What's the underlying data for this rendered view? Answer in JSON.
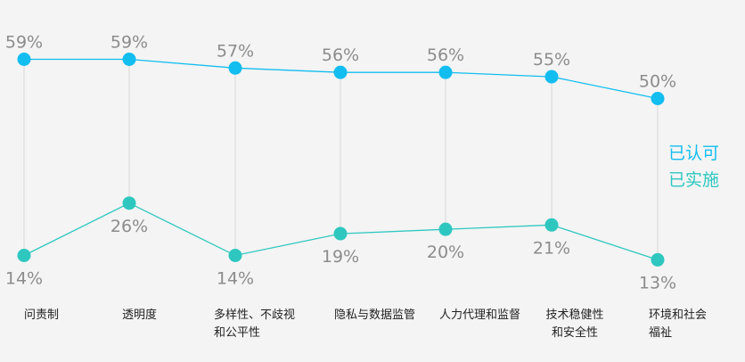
{
  "chart_data": {
    "type": "line",
    "categories": [
      [
        "问责制"
      ],
      [
        "透明度"
      ],
      [
        "多样性、不歧视",
        "和公平性"
      ],
      [
        "隐私与数据监管"
      ],
      [
        "人力代理和监督"
      ],
      [
        "技术稳健性",
        "和安全性"
      ],
      [
        "环境和社会",
        "福祉"
      ]
    ],
    "series": [
      {
        "name": "已认可",
        "color": "#12bdf0",
        "values": [
          59,
          59,
          57,
          56,
          56,
          55,
          50
        ],
        "labels": [
          "59%",
          "59%",
          "57%",
          "56%",
          "56%",
          "55%",
          "50%"
        ]
      },
      {
        "name": "已实施",
        "color": "#2ec7c0",
        "values": [
          14,
          26,
          14,
          19,
          20,
          21,
          13
        ],
        "labels": [
          "14%",
          "26%",
          "14%",
          "19%",
          "20%",
          "21%",
          "13%"
        ]
      }
    ],
    "ylim": [
      0,
      70
    ],
    "grid": false,
    "legend_position": "right"
  }
}
